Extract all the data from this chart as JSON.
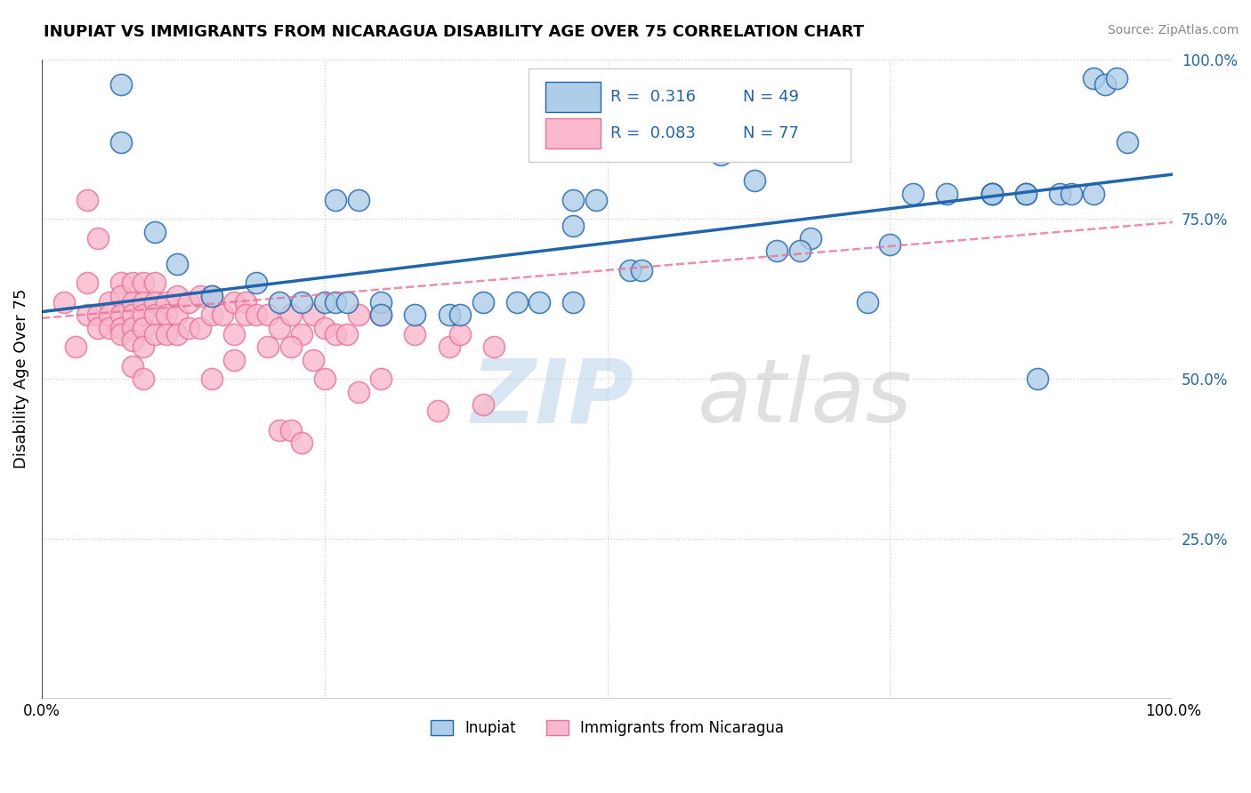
{
  "title": "INUPIAT VS IMMIGRANTS FROM NICARAGUA DISABILITY AGE OVER 75 CORRELATION CHART",
  "source": "Source: ZipAtlas.com",
  "ylabel": "Disability Age Over 75",
  "xlim": [
    0,
    1
  ],
  "ylim": [
    0,
    1
  ],
  "blue_color": "#aecde8",
  "pink_color": "#f9b8cb",
  "line_blue": "#2166ac",
  "line_pink": "#e8729a",
  "background": "#ffffff",
  "grid_color": "#cccccc",
  "inupiat_x": [
    0.07,
    0.07,
    0.26,
    0.28,
    0.47,
    0.49,
    0.47,
    0.6,
    0.63,
    0.68,
    0.75,
    0.84,
    0.87,
    0.93,
    0.94,
    0.95,
    0.96,
    0.1,
    0.12,
    0.15,
    0.19,
    0.21,
    0.23,
    0.25,
    0.26,
    0.27,
    0.3,
    0.3,
    0.33,
    0.36,
    0.37,
    0.39,
    0.42,
    0.44,
    0.47,
    0.73,
    0.77,
    0.8,
    0.84,
    0.84,
    0.87,
    0.9,
    0.91,
    0.93,
    0.88,
    0.52,
    0.53,
    0.65,
    0.67
  ],
  "inupiat_y": [
    0.96,
    0.87,
    0.78,
    0.78,
    0.78,
    0.78,
    0.74,
    0.85,
    0.81,
    0.72,
    0.71,
    0.79,
    0.79,
    0.97,
    0.96,
    0.97,
    0.87,
    0.73,
    0.68,
    0.63,
    0.65,
    0.62,
    0.62,
    0.62,
    0.62,
    0.62,
    0.62,
    0.6,
    0.6,
    0.6,
    0.6,
    0.62,
    0.62,
    0.62,
    0.62,
    0.62,
    0.79,
    0.79,
    0.79,
    0.79,
    0.79,
    0.79,
    0.79,
    0.79,
    0.5,
    0.67,
    0.67,
    0.7,
    0.7
  ],
  "nicaragua_x": [
    0.02,
    0.03,
    0.04,
    0.04,
    0.05,
    0.05,
    0.05,
    0.06,
    0.06,
    0.06,
    0.07,
    0.07,
    0.07,
    0.07,
    0.07,
    0.08,
    0.08,
    0.08,
    0.08,
    0.08,
    0.09,
    0.09,
    0.09,
    0.09,
    0.09,
    0.1,
    0.1,
    0.1,
    0.1,
    0.11,
    0.11,
    0.11,
    0.12,
    0.12,
    0.12,
    0.13,
    0.13,
    0.14,
    0.14,
    0.15,
    0.15,
    0.16,
    0.17,
    0.18,
    0.18,
    0.19,
    0.2,
    0.21,
    0.22,
    0.23,
    0.24,
    0.25,
    0.26,
    0.27,
    0.28,
    0.3,
    0.33,
    0.36,
    0.37,
    0.4,
    0.17,
    0.08,
    0.09,
    0.04,
    0.15,
    0.17,
    0.2,
    0.22,
    0.24,
    0.25,
    0.28,
    0.3,
    0.35,
    0.39,
    0.21,
    0.22,
    0.23
  ],
  "nicaragua_y": [
    0.62,
    0.55,
    0.65,
    0.6,
    0.72,
    0.6,
    0.58,
    0.62,
    0.6,
    0.58,
    0.65,
    0.63,
    0.6,
    0.58,
    0.57,
    0.65,
    0.62,
    0.6,
    0.58,
    0.56,
    0.65,
    0.62,
    0.6,
    0.58,
    0.55,
    0.65,
    0.62,
    0.6,
    0.57,
    0.62,
    0.6,
    0.57,
    0.63,
    0.6,
    0.57,
    0.62,
    0.58,
    0.63,
    0.58,
    0.63,
    0.6,
    0.6,
    0.62,
    0.62,
    0.6,
    0.6,
    0.6,
    0.58,
    0.6,
    0.57,
    0.6,
    0.58,
    0.57,
    0.57,
    0.6,
    0.6,
    0.57,
    0.55,
    0.57,
    0.55,
    0.57,
    0.52,
    0.5,
    0.78,
    0.5,
    0.53,
    0.55,
    0.55,
    0.53,
    0.5,
    0.48,
    0.5,
    0.45,
    0.46,
    0.42,
    0.42,
    0.4
  ],
  "blue_line_x0": 0.0,
  "blue_line_y0": 0.605,
  "blue_line_x1": 1.0,
  "blue_line_y1": 0.82,
  "pink_line_x0": 0.0,
  "pink_line_y0": 0.595,
  "pink_line_x1": 1.0,
  "pink_line_y1": 0.745
}
